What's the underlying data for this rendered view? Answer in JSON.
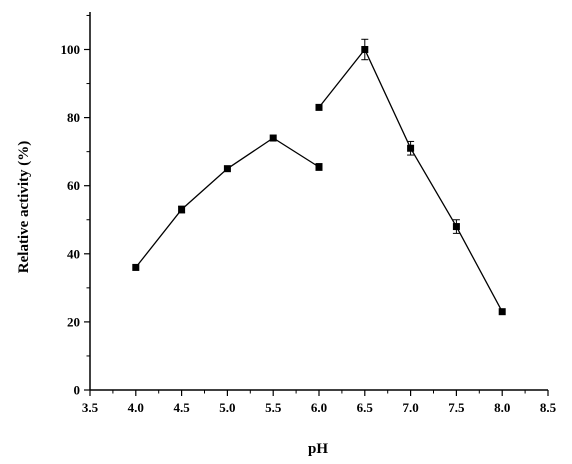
{
  "chart_data": {
    "type": "line",
    "title": "",
    "xlabel": "pH",
    "ylabel": "Relative activity (%)",
    "xlim": [
      3.5,
      8.5
    ],
    "ylim": [
      0,
      110
    ],
    "x_ticks": [
      3.5,
      4.0,
      4.5,
      5.0,
      5.5,
      6.0,
      6.5,
      7.0,
      7.5,
      8.0,
      8.5
    ],
    "x_tick_labels": [
      "3.5",
      "4.0",
      "4.5",
      "5.0",
      "5.5",
      "6.0",
      "6.5",
      "7.0",
      "7.5",
      "8.0",
      "8.5"
    ],
    "y_ticks": [
      0,
      20,
      40,
      60,
      80,
      100
    ],
    "y_tick_labels": [
      "0",
      "20",
      "40",
      "60",
      "80",
      "100"
    ],
    "grid": false,
    "legend": "none",
    "color": "#000000",
    "series": [
      {
        "x": [
          4.0,
          4.5,
          5.0,
          5.5,
          6.0
        ],
        "values": [
          36,
          53,
          65,
          74,
          65.5
        ],
        "errors": [
          0,
          1.0,
          0,
          0,
          1.0
        ]
      },
      {
        "x": [
          6.0,
          6.5,
          7.0,
          7.5,
          8.0
        ],
        "values": [
          83,
          100,
          71,
          48,
          23
        ],
        "errors": [
          0,
          3.0,
          2.0,
          2.0,
          0
        ]
      }
    ]
  }
}
